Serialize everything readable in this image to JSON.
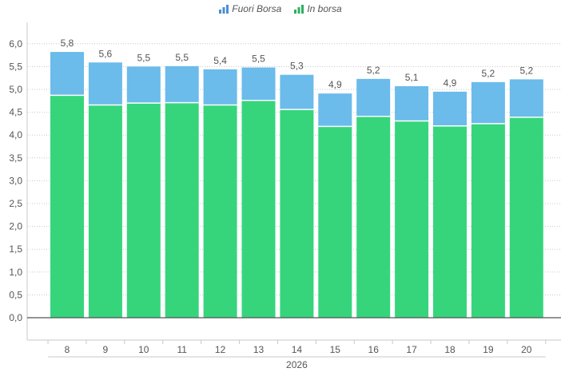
{
  "chart_data": {
    "type": "bar",
    "stacked": true,
    "title": "",
    "xlabel": "",
    "ylabel": "",
    "x_group_label": "2026",
    "categories": [
      "8",
      "9",
      "10",
      "11",
      "12",
      "13",
      "14",
      "15",
      "16",
      "17",
      "18",
      "19",
      "20"
    ],
    "series": [
      {
        "name": "In borsa",
        "color": "#36d57c",
        "values": [
          4.87,
          4.66,
          4.7,
          4.71,
          4.66,
          4.76,
          4.56,
          4.19,
          4.41,
          4.31,
          4.2,
          4.25,
          4.39
        ]
      },
      {
        "name": "Fuori Borsa",
        "color": "#6bbbeb",
        "values": [
          0.95,
          0.93,
          0.8,
          0.8,
          0.78,
          0.72,
          0.76,
          0.72,
          0.82,
          0.76,
          0.75,
          0.91,
          0.83
        ]
      }
    ],
    "total_labels": [
      "5,8",
      "5,6",
      "5,5",
      "5,5",
      "5,4",
      "5,5",
      "5,3",
      "4,9",
      "5,2",
      "5,1",
      "4,9",
      "5,2",
      "5,2"
    ],
    "y_ticks": [
      "0,0",
      "0,5",
      "1,0",
      "1,5",
      "2,0",
      "2,5",
      "3,0",
      "3,5",
      "4,0",
      "4,5",
      "5,0",
      "5,5",
      "6,0"
    ],
    "ylim": [
      0,
      6.3
    ],
    "grid": true,
    "legend_position": "top-center",
    "legend": [
      {
        "label": "Fuori Borsa",
        "icon": "bar-chart-icon",
        "color": "#4a8fd0"
      },
      {
        "label": "In borsa",
        "icon": "bar-chart-icon",
        "color": "#2fae62"
      }
    ]
  }
}
